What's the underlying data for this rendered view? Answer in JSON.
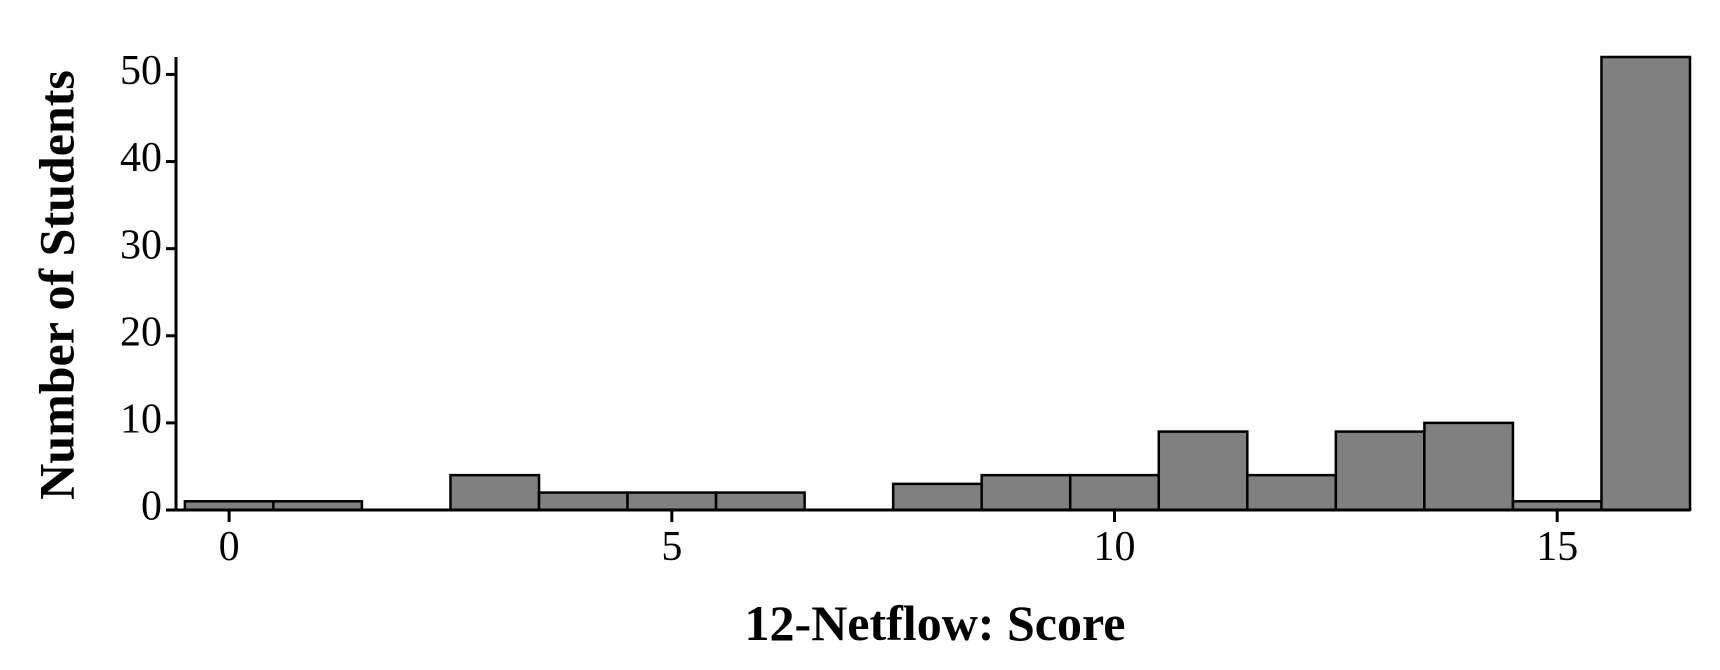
{
  "chart_data": {
    "type": "histogram",
    "x_label": "12-Netflow: Score",
    "y_label": "Number of Students",
    "bins": [
      -0.5,
      0.5,
      1.5,
      2.5,
      3.5,
      4.5,
      5.5,
      6.5,
      7.5,
      8.5,
      9.5,
      10.5,
      11.5,
      12.5,
      13.5,
      14.5,
      15.5,
      16.5
    ],
    "values": [
      1,
      1,
      0,
      4,
      2,
      2,
      2,
      0,
      3,
      4,
      4,
      9,
      4,
      9,
      10,
      1,
      52
    ],
    "color": "#808080",
    "xlim": [
      -0.6,
      16.5
    ],
    "xticks": [
      0,
      5,
      10,
      15
    ],
    "ylim": [
      0,
      52
    ],
    "yticks": [
      0,
      10,
      20,
      30,
      40,
      50
    ]
  }
}
